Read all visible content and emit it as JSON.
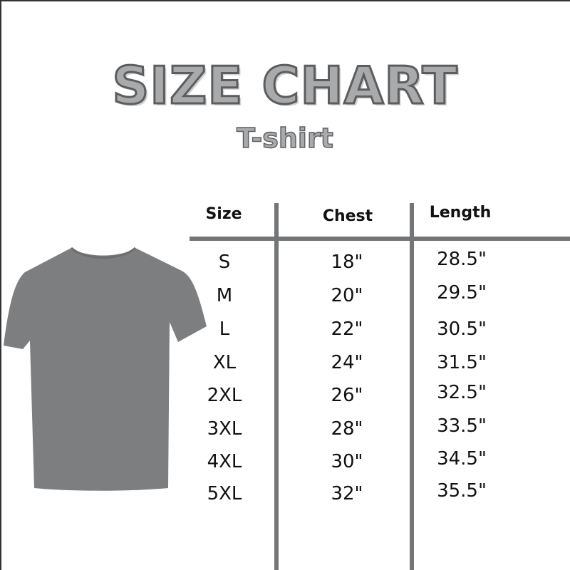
{
  "title": "SIZE CHART",
  "subtitle": "T-shirt",
  "garment_color": "#7d7e80",
  "table": {
    "headers": [
      "Size",
      "Chest",
      "Length"
    ],
    "rows": [
      {
        "size": "S",
        "chest": "18\"",
        "length": "28.5\""
      },
      {
        "size": "M",
        "chest": "20\"",
        "length": "29.5\""
      },
      {
        "size": "L",
        "chest": "22\"",
        "length": "30.5\""
      },
      {
        "size": "XL",
        "chest": "24\"",
        "length": "31.5\""
      },
      {
        "size": "2XL",
        "chest": "26\"",
        "length": "32.5\""
      },
      {
        "size": "3XL",
        "chest": "28\"",
        "length": "33.5\""
      },
      {
        "size": "4XL",
        "chest": "30\"",
        "length": "34.5\""
      },
      {
        "size": "5XL",
        "chest": "32\"",
        "length": "35.5\""
      }
    ]
  }
}
